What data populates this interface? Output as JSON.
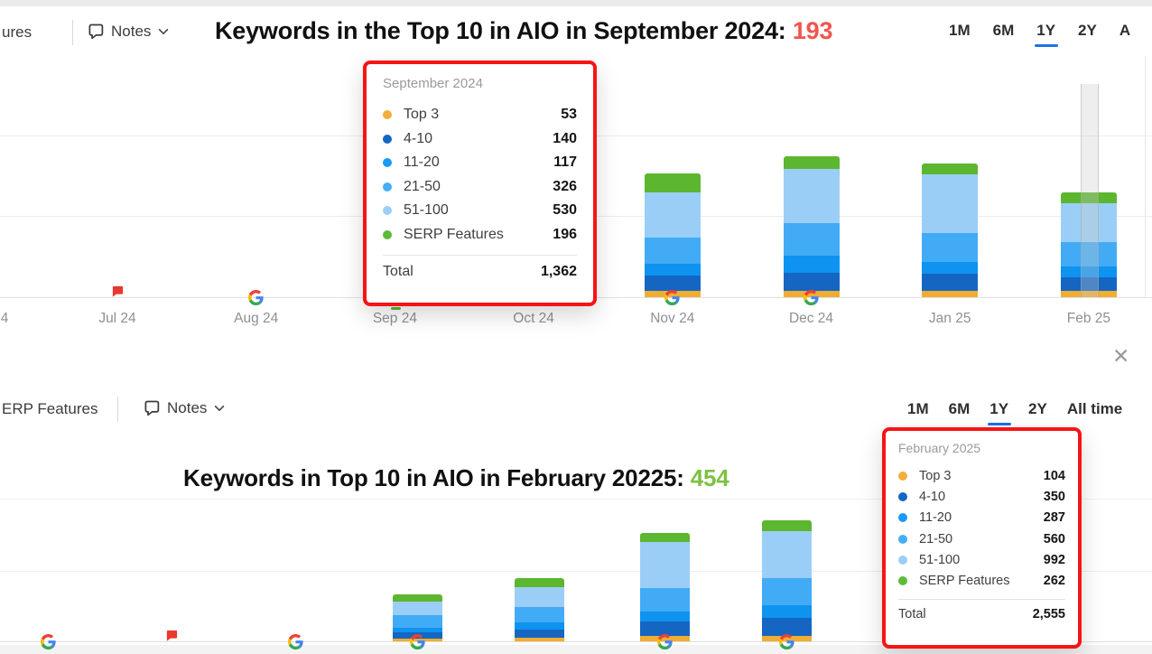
{
  "colors": {
    "accent_blue": "#1a73e8",
    "title_red": "#f4544e",
    "title_green": "#7dc243",
    "tooltip_border_red": "#f71414",
    "series": [
      "#efad33",
      "#1566c2",
      "#0e93f0",
      "#42abf5",
      "#9bcef7",
      "#5cb62f"
    ]
  },
  "top_section": {
    "toolbar": {
      "left_label": "ures",
      "notes_label": "Notes"
    },
    "title_text": "Keywords in the Top 10 in AIO in September 2024: ",
    "title_highlight": "193",
    "ranges": [
      {
        "label": "1M"
      },
      {
        "label": "6M"
      },
      {
        "label": "1Y",
        "active": true
      },
      {
        "label": "2Y"
      },
      {
        "label": "A"
      }
    ],
    "tooltip": {
      "month": "September 2024",
      "rows": [
        {
          "label": "Top 3",
          "value": "53",
          "color": "#f2ae3c"
        },
        {
          "label": "4-10",
          "value": "140",
          "color": "#1268c3"
        },
        {
          "label": "11-20",
          "value": "117",
          "color": "#1b9bf5"
        },
        {
          "label": "21-50",
          "value": "326",
          "color": "#45aef5"
        },
        {
          "label": "51-100",
          "value": "530",
          "color": "#9ccff7"
        },
        {
          "label": "SERP Features",
          "value": "196",
          "color": "#5fba36"
        }
      ],
      "total_label": "Total",
      "total_value": "1,362"
    }
  },
  "bottom_section": {
    "toolbar": {
      "left_label": "ERP Features",
      "notes_label": "Notes"
    },
    "close_glyph": "✕",
    "title_text": "Keywords in Top 10 in AIO in February 20225: ",
    "title_highlight": "454",
    "ranges": [
      {
        "label": "1M"
      },
      {
        "label": "6M"
      },
      {
        "label": "1Y",
        "active": true
      },
      {
        "label": "2Y"
      },
      {
        "label": "All time"
      }
    ],
    "tooltip": {
      "month": "February 2025",
      "rows": [
        {
          "label": "Top 3",
          "value": "104",
          "color": "#f2ae3c"
        },
        {
          "label": "4-10",
          "value": "350",
          "color": "#1268c3"
        },
        {
          "label": "11-20",
          "value": "287",
          "color": "#1b9bf5"
        },
        {
          "label": "21-50",
          "value": "560",
          "color": "#45aef5"
        },
        {
          "label": "51-100",
          "value": "992",
          "color": "#9ccff7"
        },
        {
          "label": "SERP Features",
          "value": "262",
          "color": "#5fba36"
        }
      ],
      "total_label": "Total",
      "total_value": "2,555"
    }
  },
  "chart_data": [
    {
      "id": "top-chart",
      "type": "bar",
      "subtype": "stacked",
      "title": "Keywords in the Top 10 in AIO in September 2024: 193",
      "legend": [
        "Top 3",
        "4-10",
        "11-20",
        "21-50",
        "51-100",
        "SERP Features"
      ],
      "series_colors": [
        "#efad33",
        "#1566c2",
        "#0e93f0",
        "#42abf5",
        "#9bcef7",
        "#5cb62f"
      ],
      "x_categories": [
        "4",
        "Jul 24",
        "Aug 24",
        "Sep 24",
        "Oct 24",
        "Nov 24",
        "Dec 24",
        "Jan 25",
        "Feb 25"
      ],
      "y_axis": {
        "tick_labels_visible": false,
        "gridline_interval_estimate": 1000,
        "grid": true
      },
      "values_estimated_from_pixels": true,
      "bars": [
        {
          "category": "Nov 24",
          "slot": 5,
          "values": [
            79,
            191,
            146,
            326,
            562,
            236
          ],
          "total": 1540
        },
        {
          "category": "Dec 24",
          "slot": 6,
          "values": [
            79,
            225,
            214,
            405,
            674,
            157
          ],
          "total": 1754
        },
        {
          "category": "Jan 25",
          "slot": 7,
          "values": [
            79,
            214,
            146,
            360,
            731,
            135
          ],
          "total": 1665
        },
        {
          "category": "Feb 25",
          "slot": 8,
          "values": [
            79,
            169,
            135,
            303,
            483,
            135
          ],
          "total": 1304
        }
      ],
      "hovered_category": "Feb 25",
      "axis_markers": [
        {
          "slot": 1,
          "type": "note-flag"
        },
        {
          "slot": 2,
          "type": "google"
        },
        {
          "slot": 3,
          "type": "green-tick"
        },
        {
          "slot": 5,
          "type": "google"
        },
        {
          "slot": 6,
          "type": "google"
        }
      ],
      "tooltip_month": "September 2024",
      "tooltip_values": {
        "Top 3": 53,
        "4-10": 140,
        "11-20": 117,
        "21-50": 326,
        "51-100": 530,
        "SERP Features": 196,
        "Total": 1362
      }
    },
    {
      "id": "bottom-chart",
      "type": "bar",
      "subtype": "stacked",
      "title": "Keywords in Top 10 in AIO in February 20225: 454",
      "legend": [
        "Top 3",
        "4-10",
        "11-20",
        "21-50",
        "51-100",
        "SERP Features"
      ],
      "series_colors": [
        "#efad33",
        "#1566c2",
        "#0e93f0",
        "#42abf5",
        "#9bcef7",
        "#5cb62f"
      ],
      "x_categories": [],
      "x_labels_visible": false,
      "y_axis": {
        "tick_labels_visible": false,
        "gridline_interval_estimate": 1000,
        "grid": true
      },
      "values_estimated_from_pixels": true,
      "bars": [
        {
          "slot": 3,
          "values": [
            38,
            89,
            63,
            177,
            190,
            101
          ],
          "total": 658
        },
        {
          "slot": 4,
          "values": [
            51,
            114,
            101,
            215,
            278,
            127
          ],
          "total": 886
        },
        {
          "slot": 5,
          "values": [
            76,
            203,
            139,
            329,
            645,
            127
          ],
          "total": 1519
        },
        {
          "slot": 6,
          "values": [
            76,
            253,
            177,
            380,
            658,
            152
          ],
          "total": 1696
        }
      ],
      "axis_markers": [
        {
          "slot": 0,
          "type": "google"
        },
        {
          "slot": 1,
          "type": "note-flag"
        },
        {
          "slot": 2,
          "type": "google"
        },
        {
          "slot": 3,
          "type": "google"
        },
        {
          "slot": 5,
          "type": "google"
        },
        {
          "slot": 6,
          "type": "google"
        }
      ],
      "tooltip_month": "February 2025",
      "tooltip_values": {
        "Top 3": 104,
        "4-10": 350,
        "11-20": 287,
        "21-50": 560,
        "51-100": 992,
        "SERP Features": 262,
        "Total": 2555
      }
    }
  ]
}
